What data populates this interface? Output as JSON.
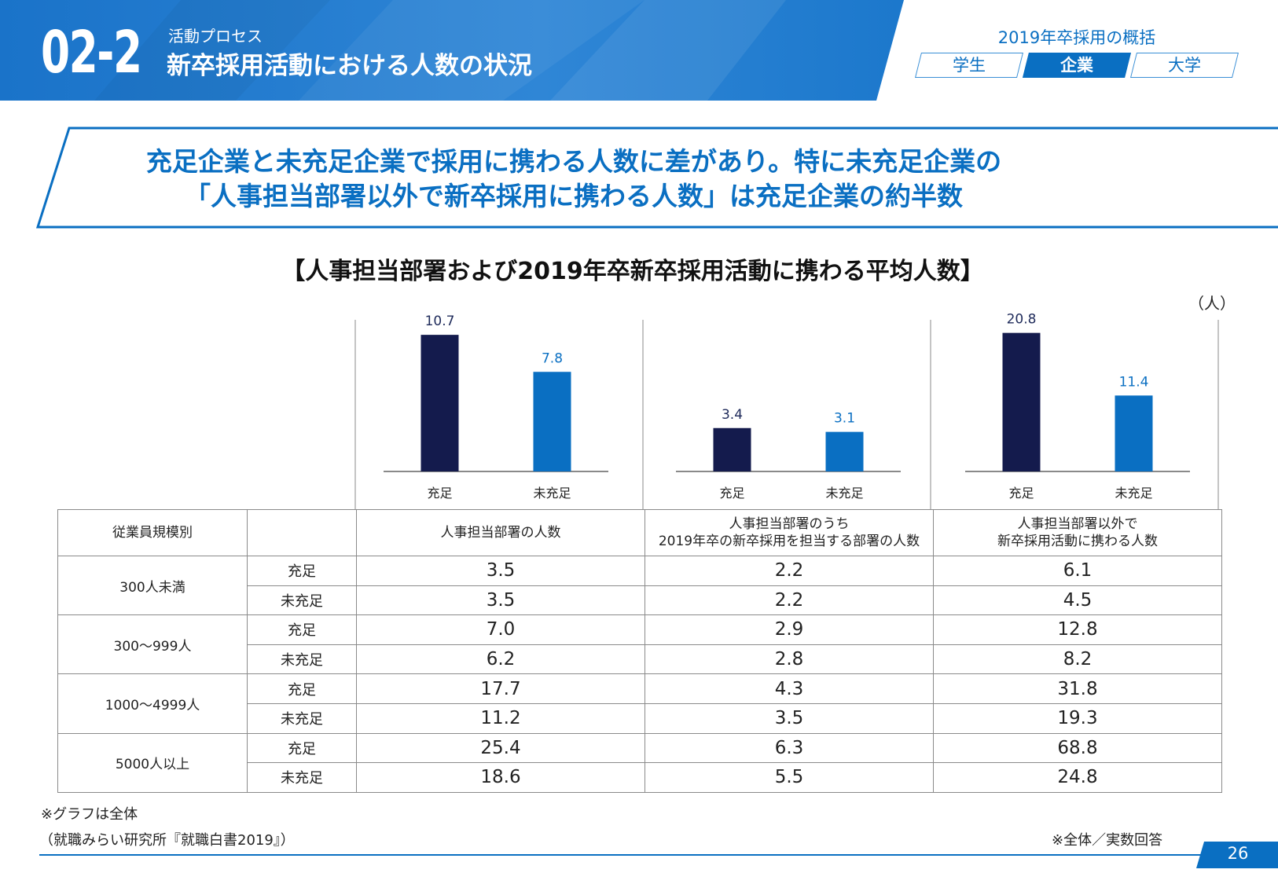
{
  "header": {
    "section_number": "02-2",
    "section_sub": "活動プロセス",
    "section_title": "新卒採用活動における人数の状況",
    "overview_label": "2019年卒採用の概括",
    "tabs": [
      {
        "label": "学生",
        "active": false
      },
      {
        "label": "企業",
        "active": true
      },
      {
        "label": "大学",
        "active": false
      }
    ]
  },
  "headline": {
    "line1": "充足企業と未充足企業で採用に携わる人数に差があり。特に未充足企業の",
    "line2": "「人事担当部署以外で新卒採用に携わる人数」は充足企業の約半数"
  },
  "chart_title": "【人事担当部署および2019年卒新卒採用活動に携わる平均人数】",
  "unit_label": "（人）",
  "colors": {
    "brand": "#0a6fc2",
    "filled": "#141b4d",
    "unfilled": "#0a6fc2"
  },
  "chart_data": [
    {
      "type": "bar",
      "categories": [
        "充足",
        "未充足"
      ],
      "values": [
        10.7,
        7.8
      ],
      "ylim": [
        0,
        12
      ]
    },
    {
      "type": "bar",
      "categories": [
        "充足",
        "未充足"
      ],
      "values": [
        3.4,
        3.1
      ],
      "ylim": [
        0,
        12
      ]
    },
    {
      "type": "bar",
      "categories": [
        "充足",
        "未充足"
      ],
      "values": [
        20.8,
        11.4
      ],
      "ylim": [
        0,
        23
      ]
    }
  ],
  "table": {
    "size_header": "従業員規模別",
    "columns": [
      {
        "l1": "人事担当部署の人数",
        "l2": ""
      },
      {
        "l1": "人事担当部署のうち",
        "l2": "2019年卒の新卒採用を担当する部署の人数"
      },
      {
        "l1": "人事担当部署以外で",
        "l2": "新卒採用活動に携わる人数"
      }
    ],
    "groups": [
      {
        "size": "300人未満",
        "rows": [
          {
            "status": "充足",
            "values": [
              "3.5",
              "2.2",
              "6.1"
            ]
          },
          {
            "status": "未充足",
            "values": [
              "3.5",
              "2.2",
              "4.5"
            ]
          }
        ]
      },
      {
        "size": "300～999人",
        "rows": [
          {
            "status": "充足",
            "values": [
              "7.0",
              "2.9",
              "12.8"
            ]
          },
          {
            "status": "未充足",
            "values": [
              "6.2",
              "2.8",
              "8.2"
            ]
          }
        ]
      },
      {
        "size": "1000～4999人",
        "rows": [
          {
            "status": "充足",
            "values": [
              "17.7",
              "4.3",
              "31.8"
            ]
          },
          {
            "status": "未充足",
            "values": [
              "11.2",
              "3.5",
              "19.3"
            ]
          }
        ]
      },
      {
        "size": "5000人以上",
        "rows": [
          {
            "status": "充足",
            "values": [
              "25.4",
              "6.3",
              "68.8"
            ]
          },
          {
            "status": "未充足",
            "values": [
              "18.6",
              "5.5",
              "24.8"
            ]
          }
        ]
      }
    ]
  },
  "notes": {
    "graph_note": "※グラフは全体",
    "source": "（就職みらい研究所『就職白書2019』）",
    "response_note": "※全体／実数回答"
  },
  "page_number": "26"
}
